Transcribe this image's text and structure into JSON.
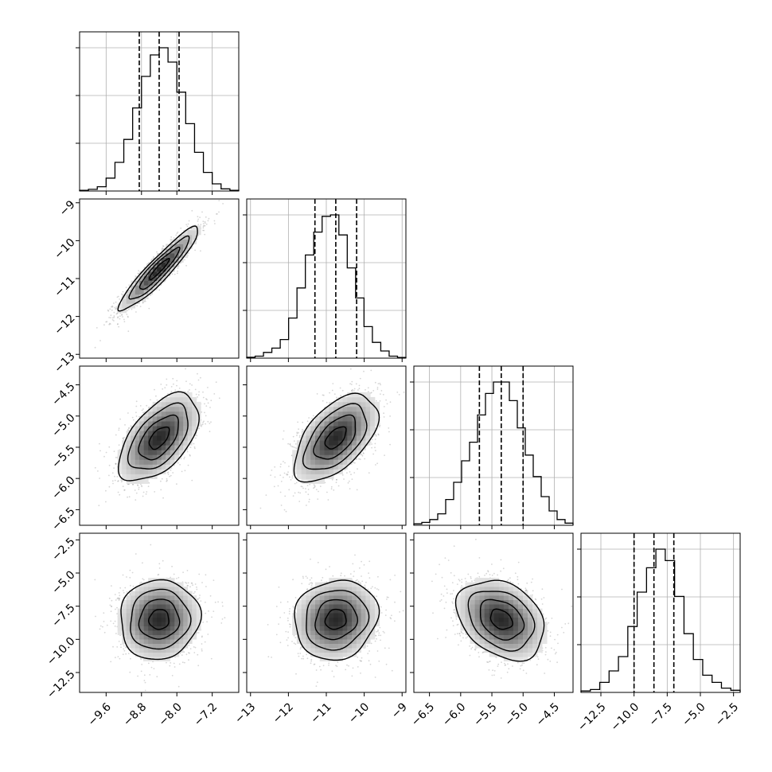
{
  "chart_data": {
    "type": "corner",
    "parameters": [
      {
        "range": [
          -10.2,
          -6.6
        ],
        "ticks": [
          -9.6,
          -8.8,
          -8.0,
          -7.2
        ],
        "tick_labels": [
          "−9.6",
          "−8.8",
          "−8.0",
          "−7.2"
        ],
        "quantiles": [
          -8.85,
          -8.4,
          -7.95
        ]
      },
      {
        "range": [
          -13.1,
          -8.9
        ],
        "ticks": [
          -13,
          -12,
          -11,
          -10,
          -9
        ],
        "tick_labels": [
          "−13",
          "−12",
          "−11",
          "−10",
          "−9"
        ],
        "quantiles": [
          -11.3,
          -10.75,
          -10.2
        ]
      },
      {
        "range": [
          -6.75,
          -4.2
        ],
        "ticks": [
          -6.5,
          -6.0,
          -5.5,
          -5.0,
          -4.5
        ],
        "tick_labels": [
          "−6.5",
          "−6.0",
          "−5.5",
          "−5.0",
          "−4.5"
        ],
        "quantiles": [
          -5.7,
          -5.35,
          -5.0
        ]
      },
      {
        "range": [
          -14.0,
          -2.0
        ],
        "ticks": [
          -12.5,
          -10.0,
          -7.5,
          -5.0,
          -2.5
        ],
        "tick_labels": [
          "−12.5",
          "−10.0",
          "−7.5",
          "−5.0",
          "−2.5"
        ],
        "quantiles": [
          -10.0,
          -8.5,
          -7.0
        ]
      }
    ],
    "row_ylabels": [
      null,
      {
        "ticks": [
          -13,
          -12,
          -11,
          -10,
          -9
        ],
        "tick_labels": [
          "−13",
          "−12",
          "−11",
          "−10",
          "−9"
        ]
      },
      {
        "ticks": [
          -6.5,
          -6.0,
          -5.5,
          -5.0,
          -4.5
        ],
        "tick_labels": [
          "−6.5",
          "−6.0",
          "−5.5",
          "−5.0",
          "−4.5"
        ]
      },
      {
        "ticks": [
          -12.5,
          -10.0,
          -7.5,
          -5.0,
          -2.5
        ],
        "tick_labels": [
          "−12.5",
          "−10.0",
          "−7.5",
          "−5.0",
          "−2.5"
        ]
      }
    ],
    "histograms": [
      [
        0.005,
        0.012,
        0.03,
        0.09,
        0.2,
        0.36,
        0.58,
        0.8,
        0.95,
        1.0,
        0.9,
        0.69,
        0.47,
        0.27,
        0.13,
        0.05,
        0.015,
        0.005
      ],
      [
        0.006,
        0.014,
        0.04,
        0.07,
        0.13,
        0.28,
        0.49,
        0.72,
        0.88,
        0.99,
        1.0,
        0.86,
        0.63,
        0.42,
        0.22,
        0.11,
        0.05,
        0.014,
        0.005
      ],
      [
        0.01,
        0.02,
        0.04,
        0.08,
        0.18,
        0.3,
        0.45,
        0.58,
        0.77,
        0.92,
        1.0,
        1.0,
        0.87,
        0.68,
        0.49,
        0.34,
        0.2,
        0.1,
        0.04,
        0.015
      ],
      [
        0.01,
        0.02,
        0.07,
        0.15,
        0.25,
        0.46,
        0.7,
        0.87,
        1.0,
        0.92,
        0.67,
        0.41,
        0.23,
        0.12,
        0.07,
        0.03,
        0.015
      ]
    ],
    "pairs": [
      {
        "row": 1,
        "col": 0,
        "mean": [
          -8.4,
          -10.75
        ],
        "sd": [
          0.45,
          0.55
        ],
        "rho": 0.93
      },
      {
        "row": 2,
        "col": 0,
        "mean": [
          -8.4,
          -5.35
        ],
        "sd": [
          0.45,
          0.35
        ],
        "rho": 0.55
      },
      {
        "row": 2,
        "col": 1,
        "mean": [
          -10.75,
          -5.35
        ],
        "sd": [
          0.55,
          0.35
        ],
        "rho": 0.55
      },
      {
        "row": 3,
        "col": 0,
        "mean": [
          -8.4,
          -8.5
        ],
        "sd": [
          0.45,
          1.5
        ],
        "rho": 0.05
      },
      {
        "row": 3,
        "col": 1,
        "mean": [
          -10.75,
          -8.5
        ],
        "sd": [
          0.55,
          1.5
        ],
        "rho": 0.1
      },
      {
        "row": 3,
        "col": 2,
        "mean": [
          -5.35,
          -8.5
        ],
        "sd": [
          0.35,
          1.5
        ],
        "rho": -0.3
      }
    ],
    "grid": true
  },
  "colors": {
    "points": "#8a8a8a",
    "line": "#000000",
    "grid": "#b0b0b0"
  }
}
